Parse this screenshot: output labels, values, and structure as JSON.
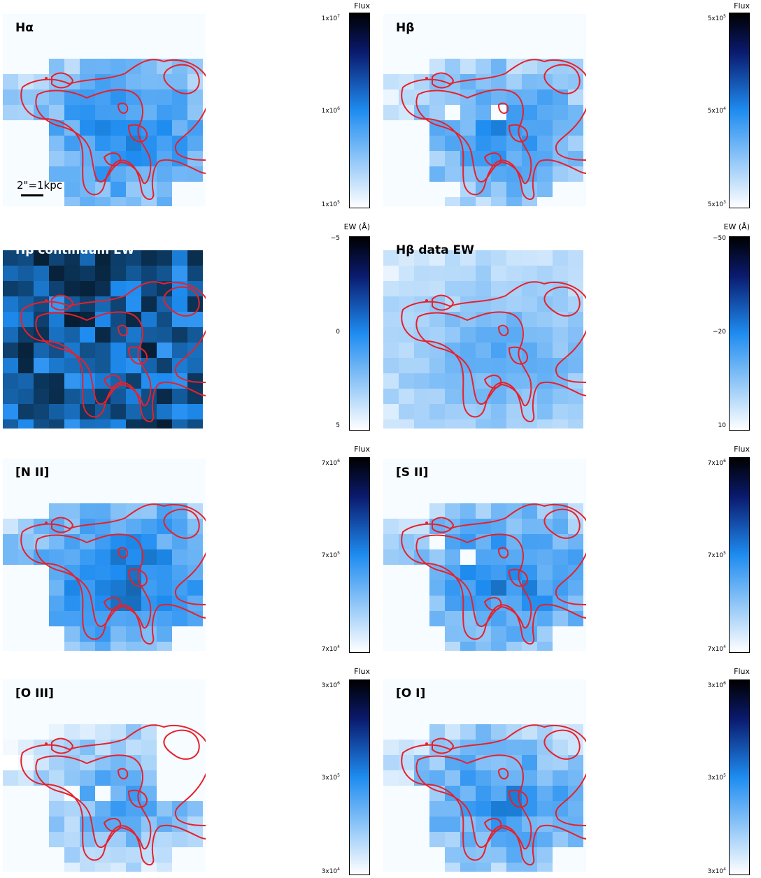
{
  "figure": {
    "panels": [
      {
        "id": "ha",
        "label": "Hα",
        "mask": "full",
        "seed": 11,
        "bias": 0.0,
        "holes": []
      },
      {
        "id": "hb",
        "label": "Hβ",
        "mask": "sparse",
        "seed": 23,
        "bias": -0.05,
        "holes": [
          [
            4,
            5
          ],
          [
            7,
            5
          ],
          [
            2,
            8
          ],
          [
            3,
            10
          ]
        ]
      },
      {
        "id": "hb_cont_ew",
        "label": "Hβ continuum EW",
        "mask": "square",
        "seed": 37,
        "bias": 0.35,
        "holes": [],
        "light_label": true
      },
      {
        "id": "hb_data_ew",
        "label": "Hβ data EW",
        "mask": "square",
        "seed": 41,
        "bias": -0.15,
        "holes": []
      },
      {
        "id": "nii",
        "label": "[N II]",
        "mask": "full",
        "seed": 53,
        "bias": 0.05,
        "holes": []
      },
      {
        "id": "sii",
        "label": "[S II]",
        "mask": "full",
        "seed": 67,
        "bias": 0.0,
        "holes": [
          [
            5,
            5
          ],
          [
            3,
            4
          ]
        ]
      },
      {
        "id": "oiii",
        "label": "[O III]",
        "mask": "oiii",
        "seed": 71,
        "bias": -0.12,
        "holes": [
          [
            4,
            6
          ],
          [
            6,
            6
          ]
        ]
      },
      {
        "id": "oi",
        "label": "[O I]",
        "mask": "full",
        "seed": 83,
        "bias": -0.05,
        "holes": []
      }
    ],
    "colorbars": [
      {
        "id": "cb1",
        "title": "Flux",
        "top_tick": {
          "base": "1x10",
          "exp": "7"
        },
        "mid_tick": {
          "base": "1x10",
          "exp": "6"
        },
        "bottom_tick": {
          "base": "1x10",
          "exp": "5"
        }
      },
      {
        "id": "cb2",
        "title": "Flux",
        "top_tick": {
          "base": "5x10",
          "exp": "5"
        },
        "mid_tick": {
          "base": "5x10",
          "exp": "4"
        },
        "bottom_tick": {
          "base": "5x10",
          "exp": "3"
        }
      },
      {
        "id": "cb3",
        "title": "EW (Å)",
        "top_tick": {
          "base": "−5",
          "exp": ""
        },
        "mid_tick": {
          "base": "0",
          "exp": ""
        },
        "bottom_tick": {
          "base": "5",
          "exp": ""
        }
      },
      {
        "id": "cb4",
        "title": "EW (Å)",
        "top_tick": {
          "base": "−50",
          "exp": ""
        },
        "mid_tick": {
          "base": "−20",
          "exp": ""
        },
        "bottom_tick": {
          "base": "10",
          "exp": ""
        }
      },
      {
        "id": "cb5",
        "title": "Flux",
        "top_tick": {
          "base": "7x10",
          "exp": "6"
        },
        "mid_tick": {
          "base": "7x10",
          "exp": "5"
        },
        "bottom_tick": {
          "base": "7x10",
          "exp": "4"
        }
      },
      {
        "id": "cb6",
        "title": "Flux",
        "top_tick": {
          "base": "7x10",
          "exp": "6"
        },
        "mid_tick": {
          "base": "7x10",
          "exp": "5"
        },
        "bottom_tick": {
          "base": "7x10",
          "exp": "4"
        }
      },
      {
        "id": "cb7",
        "title": "Flux",
        "top_tick": {
          "base": "3x10",
          "exp": "6"
        },
        "mid_tick": {
          "base": "3x10",
          "exp": "5"
        },
        "bottom_tick": {
          "base": "3x10",
          "exp": "4"
        }
      },
      {
        "id": "cb8",
        "title": "Flux",
        "top_tick": {
          "base": "3x10",
          "exp": "6"
        },
        "mid_tick": {
          "base": "3x10",
          "exp": "5"
        },
        "bottom_tick": {
          "base": "3x10",
          "exp": "4"
        }
      }
    ],
    "scalebar": {
      "text": "2\"=1kpc"
    },
    "colors": {
      "contour": "#e8202a",
      "cmap_low": "#ffffff",
      "cmap_mid": "#1e8cf0",
      "cmap_high": "#000000",
      "background": "#f6fcff"
    }
  }
}
